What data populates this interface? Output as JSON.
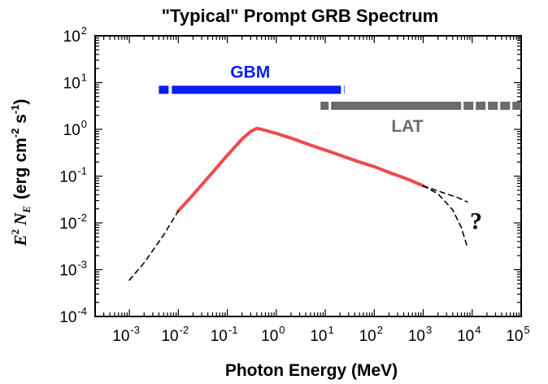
{
  "chart_data": {
    "type": "line",
    "title": "\"Typical\" Prompt GRB Spectrum",
    "xlabel": "Photon Energy (MeV)",
    "ylabel": {
      "prefix": "E",
      "prefix_sup": "2",
      "symbol": "N",
      "symbol_sub": "E",
      "units": "(erg cm",
      "u1": "-2",
      "u2": " s",
      "u3": "-1",
      "u4": ")"
    },
    "xscale": "log",
    "yscale": "log",
    "xlim": [
      0.0002,
      100000
    ],
    "ylim": [
      0.0001,
      100
    ],
    "x_tick_exponents": [
      -3,
      -2,
      -1,
      0,
      1,
      2,
      3,
      4,
      5
    ],
    "y_tick_exponents": [
      -4,
      -3,
      -2,
      -1,
      0,
      1,
      2
    ],
    "series": [
      {
        "style": "solid",
        "color": "#f04a4a",
        "x": [
          0.01,
          0.02,
          0.05,
          0.1,
          0.2,
          0.3,
          0.4,
          0.5,
          1,
          2,
          5,
          10,
          20,
          50,
          100,
          200,
          500,
          1000
        ],
        "y": [
          0.018,
          0.04,
          0.12,
          0.28,
          0.62,
          0.9,
          1.05,
          1.0,
          0.82,
          0.65,
          0.46,
          0.36,
          0.28,
          0.2,
          0.16,
          0.12,
          0.085,
          0.062
        ]
      },
      {
        "style": "dashed",
        "color": "#000000",
        "x": [
          0.001,
          0.002,
          0.005,
          0.01
        ],
        "y": [
          0.0006,
          0.0014,
          0.0055,
          0.018
        ]
      },
      {
        "style": "dashed",
        "color": "#000000",
        "x": [
          1000,
          2000,
          5000,
          8000
        ],
        "y": [
          0.062,
          0.048,
          0.035,
          0.028
        ]
      },
      {
        "style": "dashed",
        "color": "#000000",
        "x": [
          1000,
          2000,
          4000,
          6000,
          8000
        ],
        "y": [
          0.062,
          0.042,
          0.019,
          0.008,
          0.003
        ]
      }
    ],
    "bands": [
      {
        "label": "GBM",
        "color": "#0a1ef0",
        "y": 7,
        "xmin": 0.004,
        "xmax": 25,
        "style": "solid"
      },
      {
        "label": "LAT",
        "color": "#6b6b6b",
        "y": 3.2,
        "xmin": 8,
        "xmax": 100000,
        "style": "dashed"
      }
    ],
    "annotations": [
      {
        "text": "?",
        "x": 12000,
        "y": 0.011
      }
    ]
  }
}
